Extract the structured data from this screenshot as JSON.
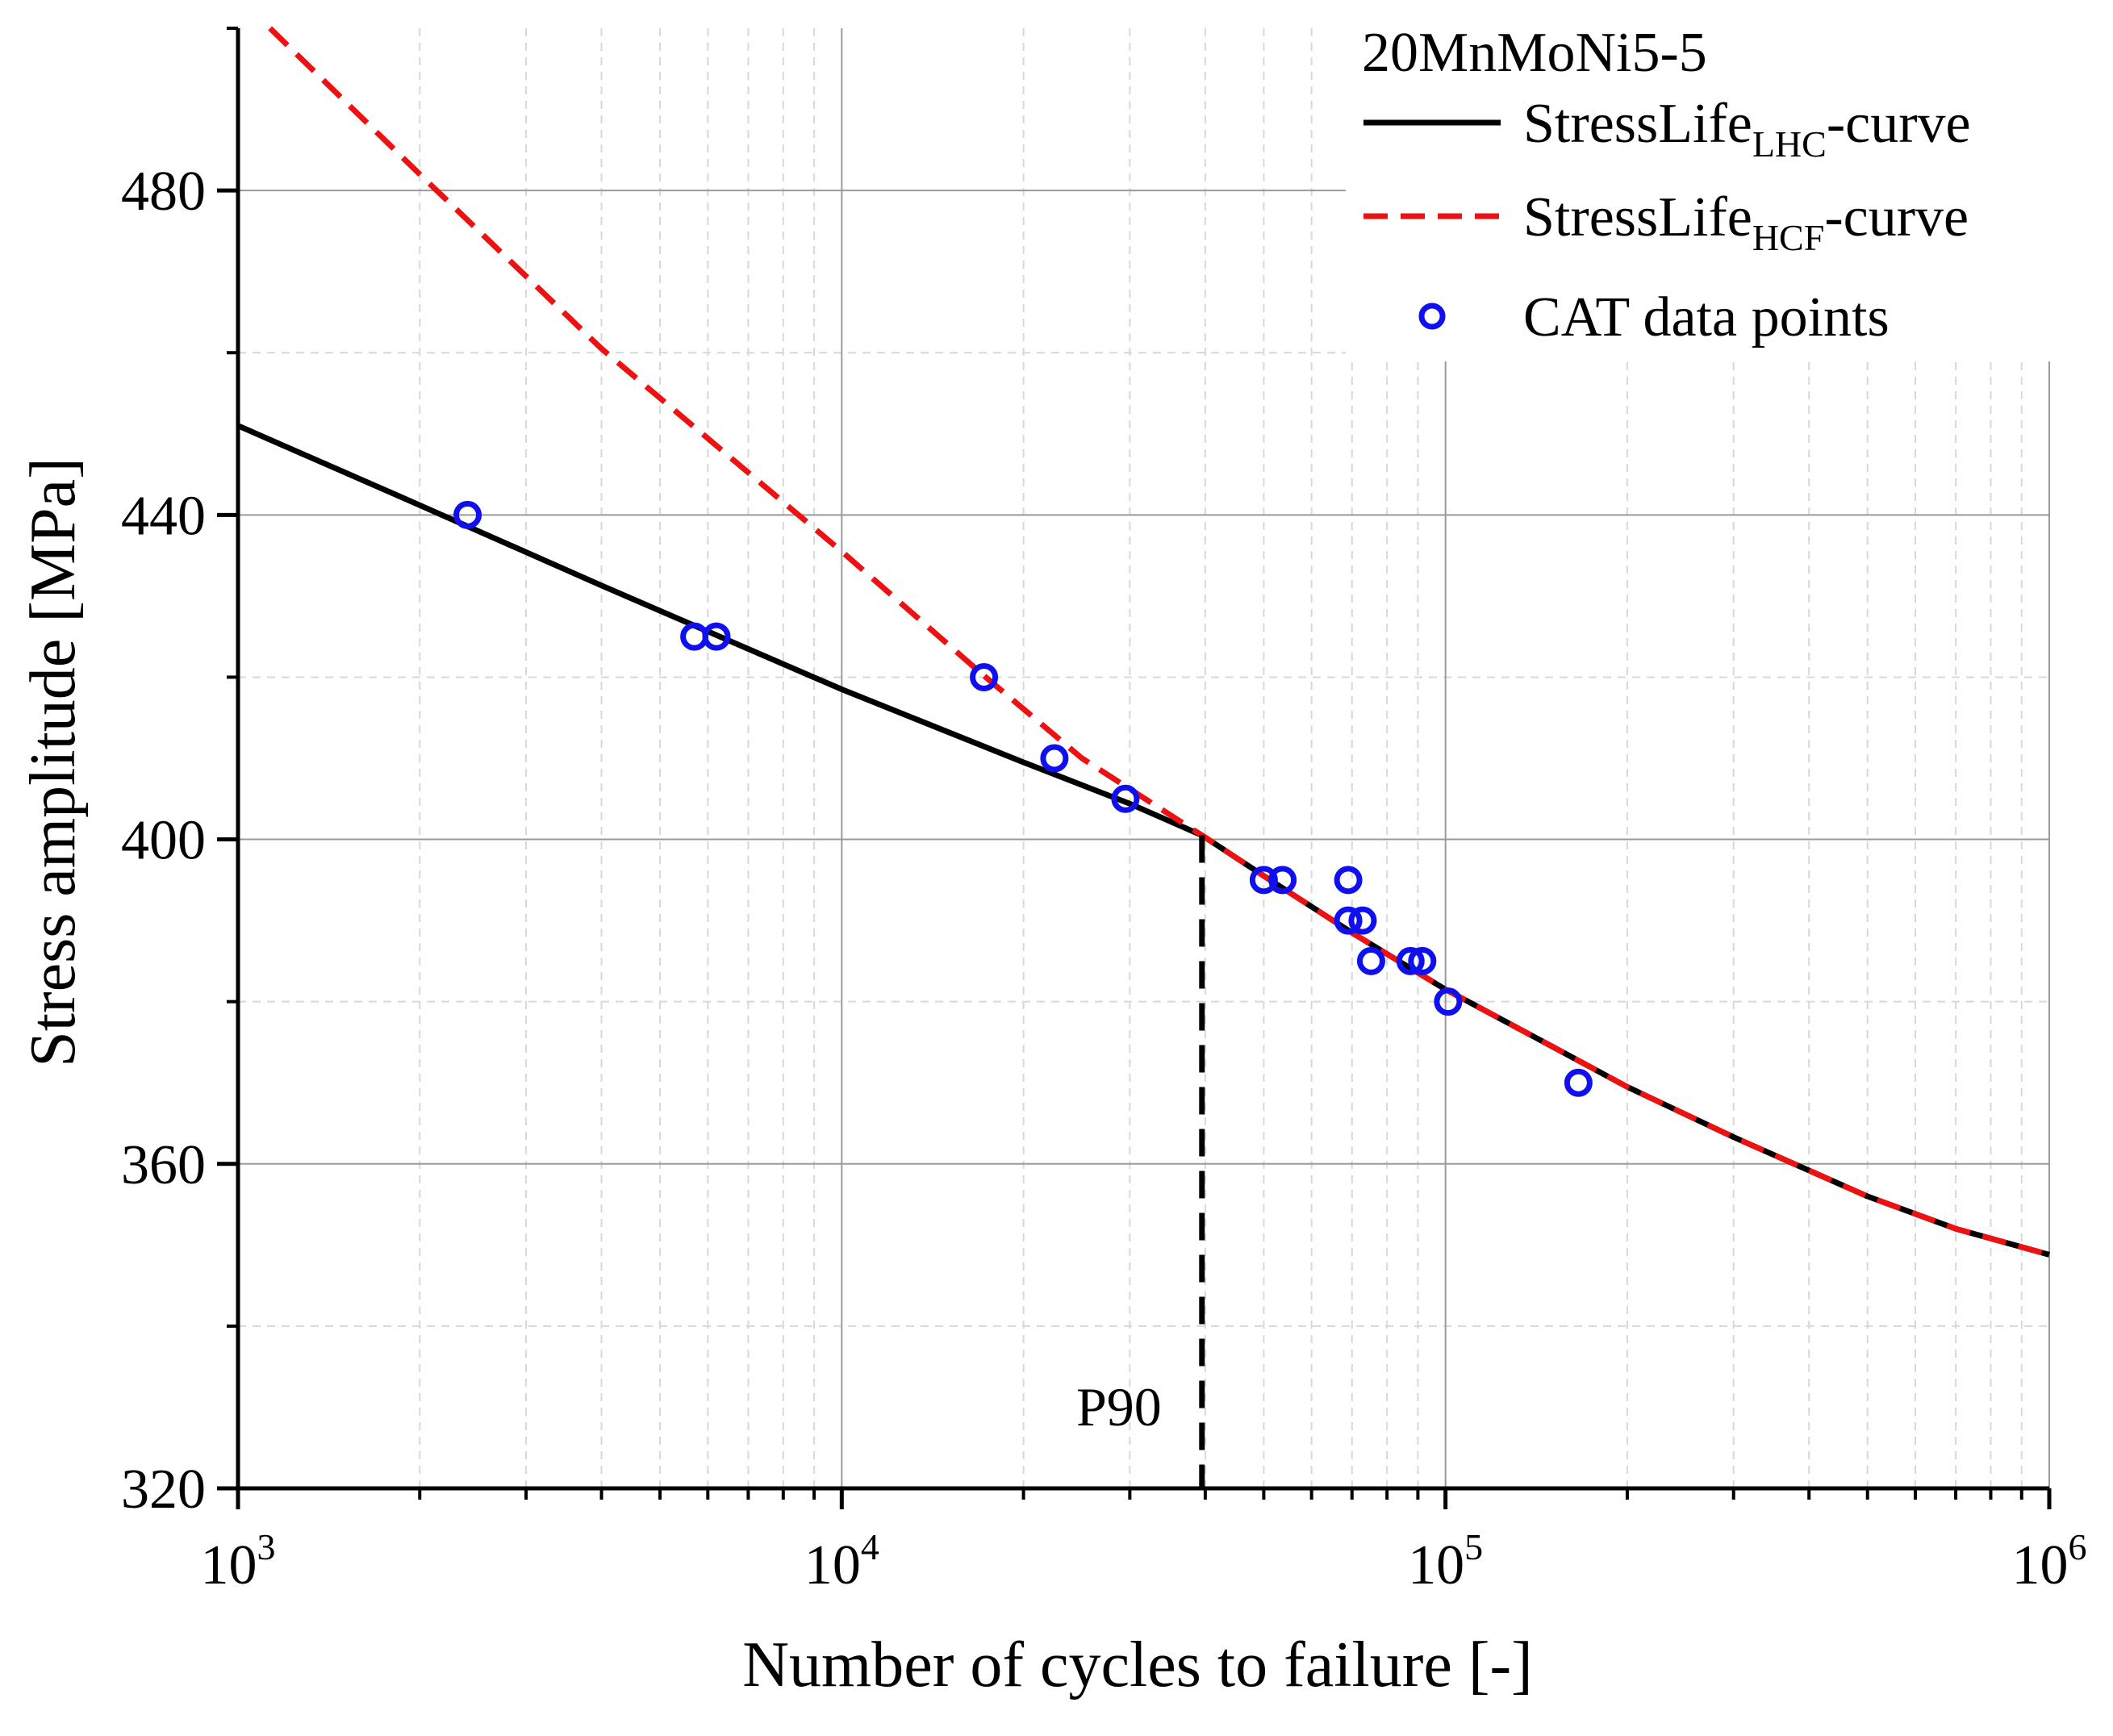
{
  "chart_data": {
    "type": "line",
    "title": "",
    "xlabel": "Number of cycles to failure [-]",
    "ylabel": "Stress amplitude [MPa]",
    "xscale": "log",
    "xlim": [
      1000,
      1000000
    ],
    "ylim": [
      320,
      500
    ],
    "grid": true,
    "legend_position": "top-right",
    "legend_title": "20MnMoNi5-5",
    "x_ticks": [
      {
        "base": "10",
        "exp": "3",
        "value": 1000
      },
      {
        "base": "10",
        "exp": "4",
        "value": 10000
      },
      {
        "base": "10",
        "exp": "5",
        "value": 100000
      },
      {
        "base": "10",
        "exp": "6",
        "value": 1000000
      }
    ],
    "y_ticks": [
      {
        "label": "320",
        "value": 320
      },
      {
        "label": "360",
        "value": 360
      },
      {
        "label": "400",
        "value": 400
      },
      {
        "label": "440",
        "value": 440
      },
      {
        "label": "480",
        "value": 480
      }
    ],
    "series": [
      {
        "name": "StressLife",
        "name_sub": "LHC",
        "name_suffix": "-curve",
        "color": "#000000",
        "dash": "solid",
        "points": [
          [
            1000,
            451
          ],
          [
            2000,
            441.2
          ],
          [
            4000,
            431.3
          ],
          [
            10000,
            418.5
          ],
          [
            20000,
            409.5
          ],
          [
            30000,
            404.4
          ],
          [
            39500,
            400.5
          ],
          [
            50000,
            395.5
          ],
          [
            70000,
            388.5
          ],
          [
            100000,
            381.5
          ],
          [
            150000,
            374.5
          ],
          [
            200000,
            369.5
          ],
          [
            300000,
            363.3
          ],
          [
            500000,
            356
          ],
          [
            700000,
            352
          ],
          [
            1000000,
            348.8
          ]
        ]
      },
      {
        "name": "StressLife",
        "name_sub": "HCF",
        "name_suffix": "-curve",
        "color": "#ee1111",
        "dash": "dashed",
        "points": [
          [
            1130,
            500
          ],
          [
            2000,
            482
          ],
          [
            4000,
            460.5
          ],
          [
            10000,
            435.5
          ],
          [
            17000,
            420.5
          ],
          [
            25000,
            410
          ],
          [
            39500,
            400.5
          ],
          [
            50000,
            395.5
          ],
          [
            70000,
            388.5
          ],
          [
            100000,
            381.5
          ],
          [
            150000,
            374.5
          ],
          [
            200000,
            369.5
          ],
          [
            300000,
            363.3
          ],
          [
            500000,
            356
          ],
          [
            700000,
            352
          ],
          [
            1000000,
            348.8
          ]
        ]
      },
      {
        "name": "CAT data points",
        "type": "scatter",
        "color": "#1010ee",
        "points": [
          [
            2400,
            440
          ],
          [
            5700,
            425
          ],
          [
            6200,
            425
          ],
          [
            17200,
            420
          ],
          [
            22500,
            410
          ],
          [
            29500,
            405
          ],
          [
            50000,
            395
          ],
          [
            53700,
            395
          ],
          [
            69000,
            395
          ],
          [
            69000,
            390
          ],
          [
            72900,
            390
          ],
          [
            75300,
            385
          ],
          [
            87500,
            385
          ],
          [
            91500,
            385
          ],
          [
            101000,
            380
          ],
          [
            166000,
            370
          ]
        ]
      }
    ],
    "annotations": [
      {
        "text": "P90",
        "x": 39500,
        "y_from": 320,
        "y_to": 400.5,
        "style": "dashed-vertical-line"
      }
    ]
  }
}
